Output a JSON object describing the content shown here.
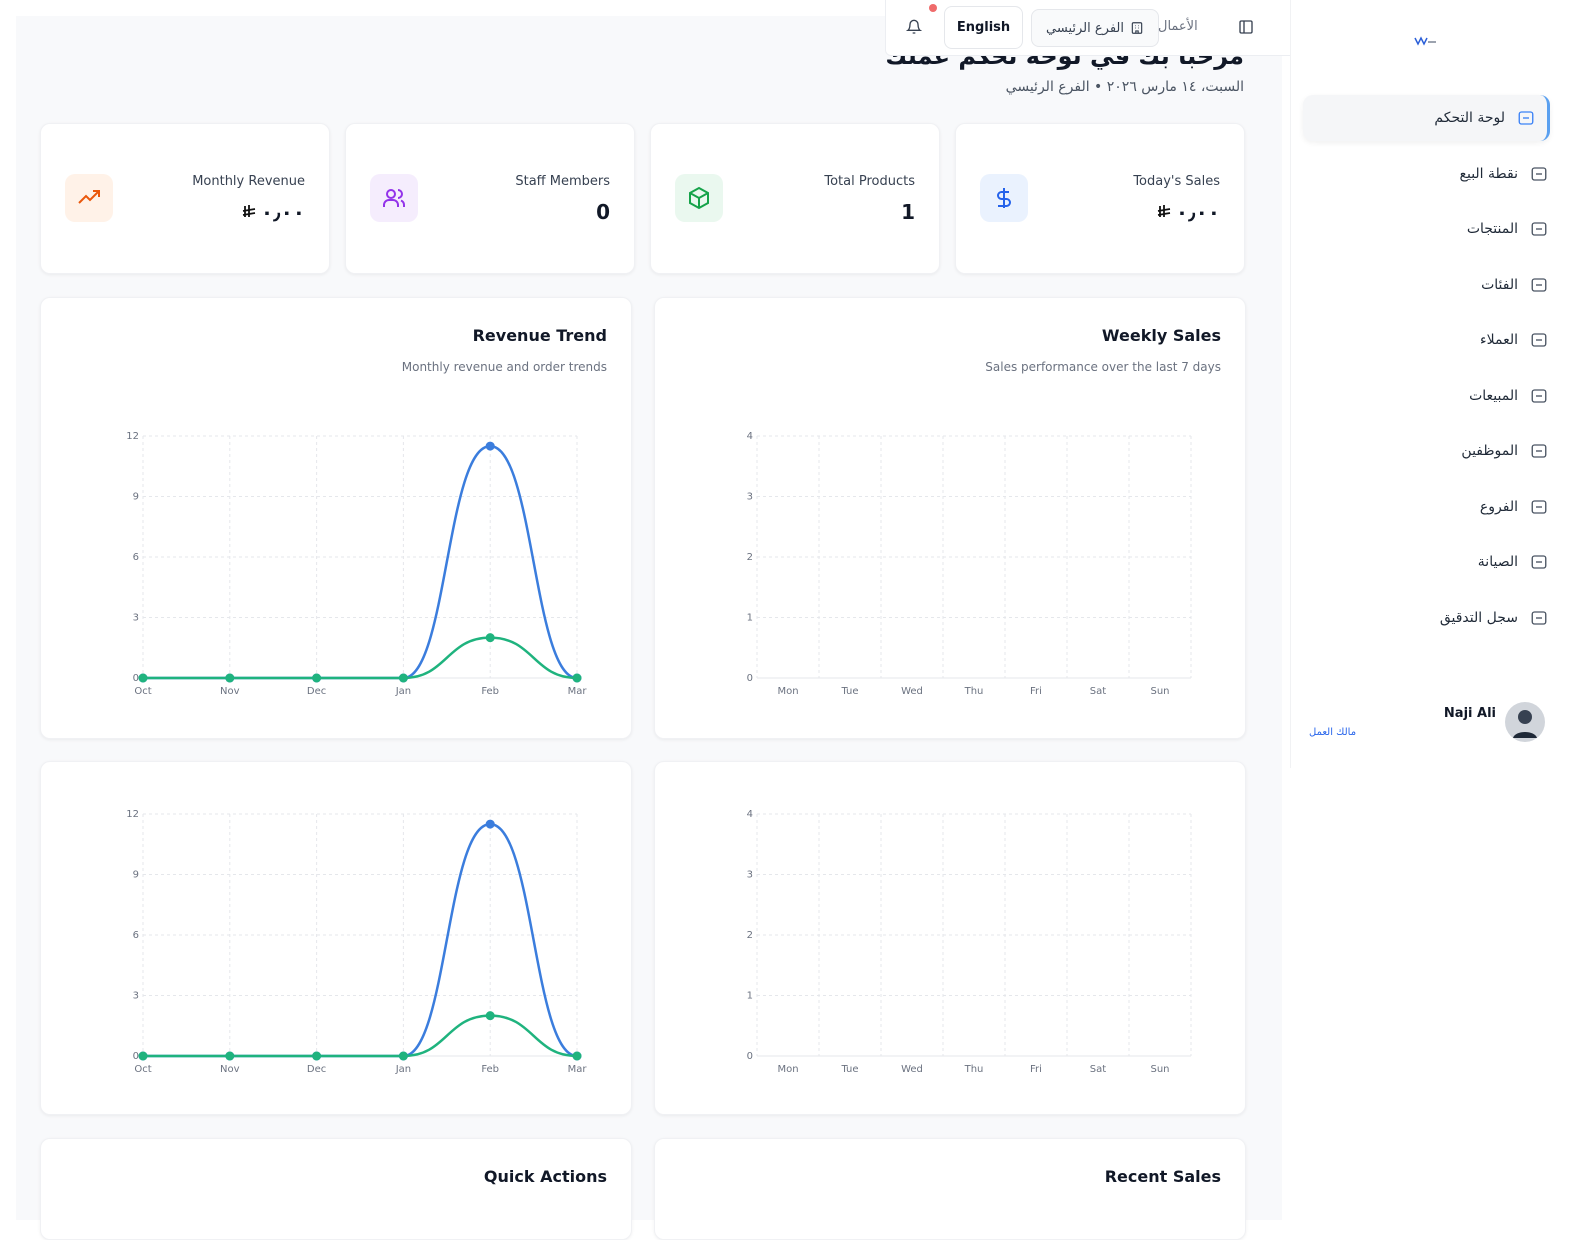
{
  "topbar": {
    "business": "الأعمال",
    "branch": "الفرع الرئيسي",
    "language": "English"
  },
  "header": {
    "title": "مرحبا بك في لوحة تحكم عملك",
    "subtitle": "السبت، ١٤ مارس ٢٠٢٦ • الفرع الرئيسي"
  },
  "stats": [
    {
      "label": "Today's Sales",
      "value": "٠٫٠٠"
    },
    {
      "label": "Total Products",
      "value": 1
    },
    {
      "label": "Staff Members",
      "value": 0
    },
    {
      "label": "Monthly Revenue",
      "value": "٠٫٠٠"
    }
  ],
  "chart_data": [
    {
      "type": "line",
      "title": "Revenue Trend",
      "subtitle": "Monthly revenue and order trends",
      "categories": [
        "Oct",
        "Nov",
        "Dec",
        "Jan",
        "Feb",
        "Mar"
      ],
      "series": [
        {
          "color": "#3b7ddd",
          "values": [
            0,
            0,
            0,
            0,
            11.5,
            0
          ]
        },
        {
          "color": "#1fb37e",
          "values": [
            0,
            0,
            0,
            0,
            2,
            0
          ]
        }
      ],
      "ylim": [
        0,
        12
      ],
      "yticks": [
        0,
        3,
        6,
        9,
        12
      ],
      "grid": true
    },
    {
      "type": "bar",
      "title": "Weekly Sales",
      "subtitle": "Sales performance over the last 7 days",
      "categories": [
        "Mon",
        "Tue",
        "Wed",
        "Thu",
        "Fri",
        "Sat",
        "Sun"
      ],
      "ylim": [
        0,
        4
      ],
      "yticks": [
        0,
        1,
        2,
        3,
        4
      ],
      "grid": true
    },
    {
      "type": "line",
      "categories": [
        "Oct",
        "Nov",
        "Dec",
        "Jan",
        "Feb",
        "Mar"
      ],
      "series": [
        {
          "color": "#3b7ddd",
          "values": [
            0,
            0,
            0,
            0,
            11.5,
            0
          ]
        },
        {
          "color": "#1fb37e",
          "values": [
            0,
            0,
            0,
            0,
            2,
            0
          ]
        }
      ],
      "ylim": [
        0,
        12
      ],
      "yticks": [
        0,
        3,
        6,
        9,
        12
      ],
      "grid": true
    },
    {
      "type": "bar",
      "categories": [
        "Mon",
        "Tue",
        "Wed",
        "Thu",
        "Fri",
        "Sat",
        "Sun"
      ],
      "ylim": [
        0,
        4
      ],
      "yticks": [
        0,
        1,
        2,
        3,
        4
      ],
      "grid": true
    }
  ],
  "sections": {
    "quick_actions": "Quick Actions",
    "recent_sales": "Recent Sales"
  },
  "sidebar": {
    "nav": [
      "لوحة التحكم",
      "نقطة البيع",
      "المنتجات",
      "الفئات",
      "العملاء",
      "المبيعات",
      "الموظفين",
      "الفروع",
      "الصيانة",
      "سجل التدقيق"
    ],
    "user": {
      "name": "Naji Ali",
      "role": "مالك العمل"
    }
  }
}
